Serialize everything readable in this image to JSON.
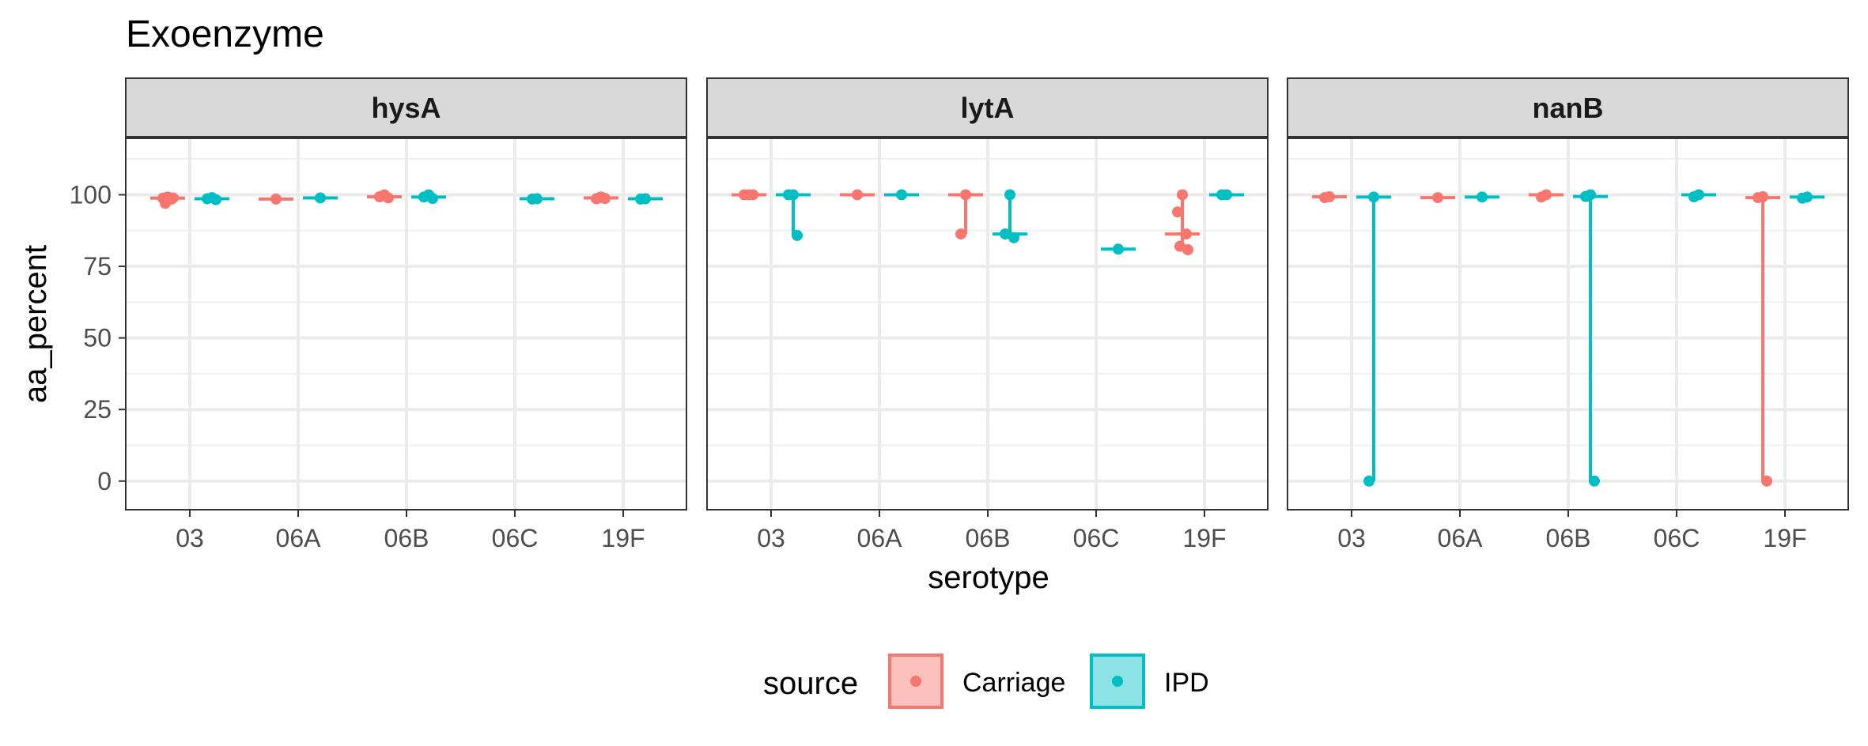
{
  "chart_data": {
    "type": "scatter",
    "title": "Exoenzyme",
    "xlabel": "serotype",
    "ylabel": "aa_percent",
    "ylim": [
      -10,
      120
    ],
    "y_ticks": [
      0,
      25,
      50,
      75,
      100
    ],
    "y_tick_labels": [
      "0",
      "25",
      "50",
      "75",
      "100"
    ],
    "categories": [
      "03",
      "06A",
      "06B",
      "06C",
      "19F"
    ],
    "grid": true,
    "legend": {
      "title": "source",
      "position": "bottom",
      "entries": [
        {
          "name": "Carriage",
          "color": "#F8766D"
        },
        {
          "name": "IPD",
          "color": "#00BFC4"
        }
      ]
    },
    "facets": [
      {
        "name": "hysA",
        "series": [
          {
            "name": "Carriage",
            "groups": [
              {
                "category": "03",
                "values": [
                  99.2,
                  98.8,
                  98.5,
                  97.0,
                  98.9
                ]
              },
              {
                "category": "06A",
                "values": [
                  98.5
                ]
              },
              {
                "category": "06B",
                "values": [
                  100,
                  99.3,
                  98.9
                ]
              },
              {
                "category": "19F",
                "values": [
                  99.2,
                  98.6,
                  98.7,
                  98.9
                ]
              }
            ]
          },
          {
            "name": "IPD",
            "groups": [
              {
                "category": "03",
                "values": [
                  99.0,
                  98.6,
                  98.3
                ]
              },
              {
                "category": "06A",
                "values": [
                  98.9
                ]
              },
              {
                "category": "06B",
                "values": [
                  100,
                  99.2,
                  98.7
                ]
              },
              {
                "category": "06C",
                "values": [
                  98.6,
                  98.5
                ]
              },
              {
                "category": "19F",
                "values": [
                  98.6,
                  98.5
                ]
              }
            ]
          }
        ]
      },
      {
        "name": "lytA",
        "series": [
          {
            "name": "Carriage",
            "groups": [
              {
                "category": "03",
                "values": [
                  100,
                  100,
                  100
                ]
              },
              {
                "category": "06A",
                "values": [
                  100
                ]
              },
              {
                "category": "06B",
                "values": [
                  100,
                  86.3
                ]
              },
              {
                "category": "19F",
                "values": [
                  100,
                  94.0,
                  86.3,
                  82.0,
                  80.8
                ]
              }
            ]
          },
          {
            "name": "IPD",
            "groups": [
              {
                "category": "03",
                "values": [
                  100,
                  100,
                  85.8
                ]
              },
              {
                "category": "06A",
                "values": [
                  100
                ]
              },
              {
                "category": "06B",
                "values": [
                  100,
                  86.3,
                  85.0
                ]
              },
              {
                "category": "06C",
                "values": [
                  81.0
                ]
              },
              {
                "category": "19F",
                "values": [
                  100,
                  100
                ]
              }
            ]
          }
        ]
      },
      {
        "name": "nanB",
        "series": [
          {
            "name": "Carriage",
            "groups": [
              {
                "category": "03",
                "values": [
                  99.3,
                  99.0
                ]
              },
              {
                "category": "06A",
                "values": [
                  99.0
                ]
              },
              {
                "category": "06B",
                "values": [
                  100,
                  99.2
                ]
              },
              {
                "category": "19F",
                "values": [
                  99.3,
                  99.0,
                  0
                ]
              }
            ]
          },
          {
            "name": "IPD",
            "groups": [
              {
                "category": "03",
                "values": [
                  99.2,
                  0
                ]
              },
              {
                "category": "06A",
                "values": [
                  99.2
                ]
              },
              {
                "category": "06B",
                "values": [
                  100,
                  99.4,
                  0
                ]
              },
              {
                "category": "06C",
                "values": [
                  100,
                  99.3
                ]
              },
              {
                "category": "19F",
                "values": [
                  99.2,
                  98.8
                ]
              }
            ]
          }
        ]
      }
    ]
  }
}
